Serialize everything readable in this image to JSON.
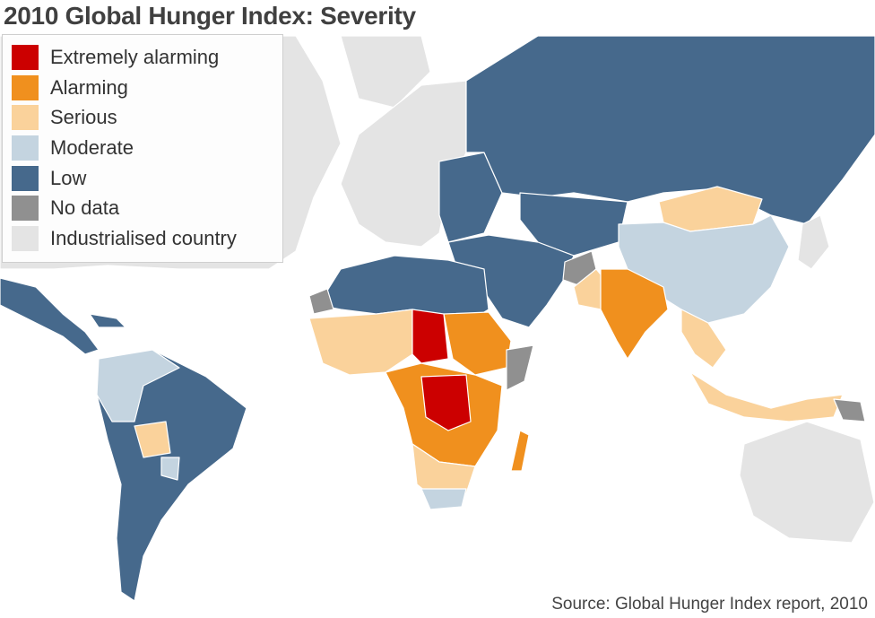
{
  "title": "2010 Global Hunger Index: Severity",
  "legend": [
    {
      "label": "Extremely alarming",
      "color": "#cc0000"
    },
    {
      "label": "Alarming",
      "color": "#f0901e"
    },
    {
      "label": "Serious",
      "color": "#fad29b"
    },
    {
      "label": "Moderate",
      "color": "#c4d4e0"
    },
    {
      "label": "Low",
      "color": "#46698c"
    },
    {
      "label": "No data",
      "color": "#909090"
    },
    {
      "label": "Industrialised country",
      "color": "#e4e4e4"
    }
  ],
  "source": "Source: Global Hunger Index report, 2010"
}
